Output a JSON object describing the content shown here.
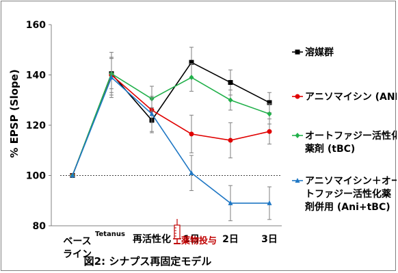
{
  "chart_data": {
    "type": "line",
    "title": "",
    "caption": "図2: シナプス再固定モデル",
    "ylabel": "% EPSP (Slope)",
    "ylim": [
      80,
      160
    ],
    "yticks": [
      80,
      100,
      120,
      140,
      160
    ],
    "baseline": 100,
    "x_categories": [
      {
        "lines": [
          "ベース",
          "ライン"
        ]
      },
      {
        "lines": [
          "Tetanus"
        ]
      },
      {
        "lines": [
          "再活性化"
        ]
      },
      {
        "lines": [
          "1日"
        ]
      },
      {
        "lines": [
          "2日"
        ]
      },
      {
        "lines": [
          "3日"
        ]
      }
    ],
    "annotation": "薬物投与",
    "series": [
      {
        "name": "溶媒群",
        "color": "#000000",
        "marker": "square",
        "values": [
          100,
          140.5,
          122,
          145,
          137,
          129
        ],
        "errors": [
          0,
          8.5,
          5,
          6,
          5,
          4
        ]
      },
      {
        "name": "アニソマイシン (ANI)",
        "color": "#e00000",
        "marker": "circle",
        "values": [
          100,
          140,
          126,
          116.5,
          114,
          117.5
        ],
        "errors": [
          0,
          7,
          5,
          7.5,
          7,
          5
        ]
      },
      {
        "name": "オートファジー活性化 薬剤 (tBC)",
        "color": "#22b04b",
        "marker": "diamond",
        "values": [
          100,
          140.5,
          130.5,
          139,
          130,
          124.5
        ],
        "errors": [
          0,
          6,
          5,
          5.5,
          4,
          4
        ]
      },
      {
        "name": "アニソマイシン＋オートファジー活性化薬 剤併用 (Ani+tBC)",
        "color": "#1f77c4",
        "marker": "triangle",
        "values": [
          100,
          139,
          124.5,
          101,
          89,
          89
        ],
        "errors": [
          0,
          8,
          7,
          7,
          7,
          6.5
        ]
      }
    ],
    "legend": [
      {
        "lines": [
          "溶媒群"
        ]
      },
      {
        "lines": [
          "アニソマイシン (ANI)"
        ]
      },
      {
        "lines": [
          "オートファジー活性化",
          "薬剤 (tBC)"
        ]
      },
      {
        "lines": [
          "アニソマイシン＋オー",
          "トファジー活性化薬",
          "剤併用 (Ani+tBC)"
        ]
      }
    ],
    "legend_position": "right"
  }
}
